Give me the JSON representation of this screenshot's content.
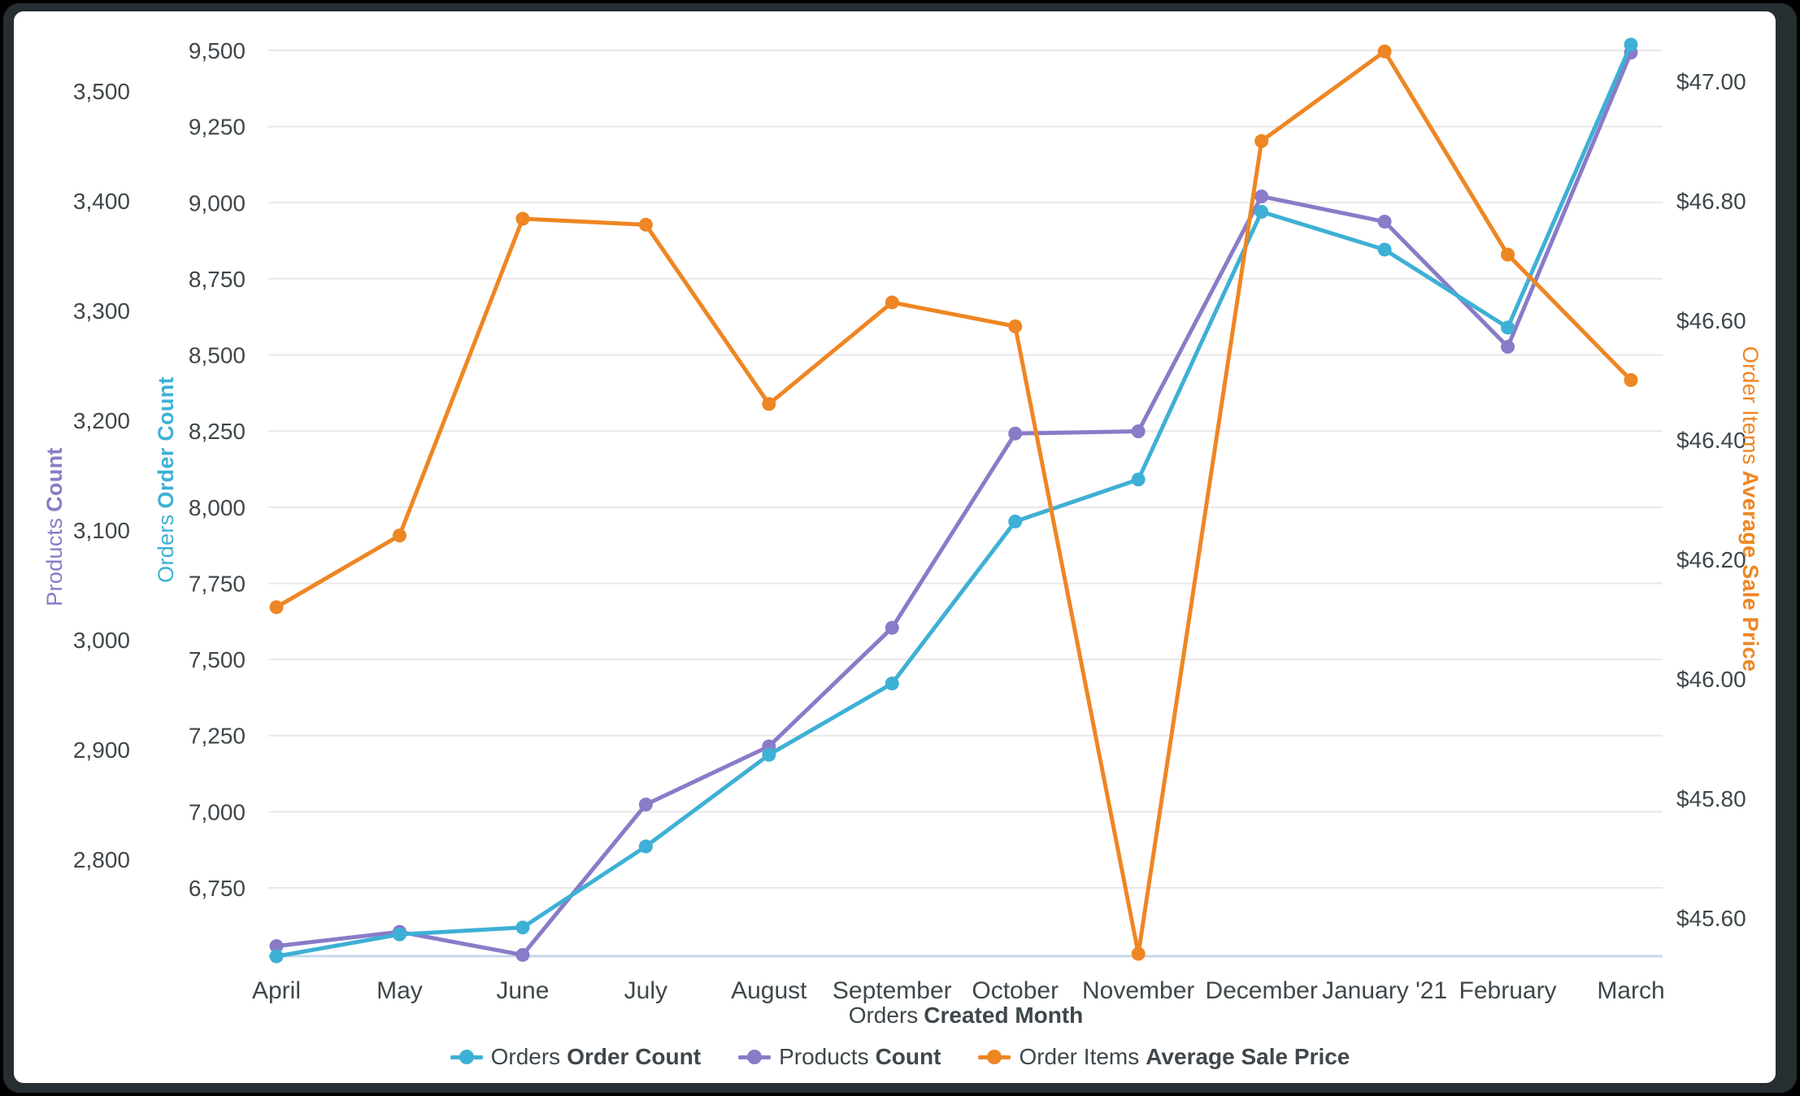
{
  "chart_data": {
    "type": "line",
    "title": "",
    "categories": [
      "April",
      "May",
      "June",
      "July",
      "August",
      "September",
      "October",
      "November",
      "December",
      "January '21",
      "February",
      "March"
    ],
    "x_axis": {
      "title_regular": "Orders",
      "title_bold": "Created Month"
    },
    "axes": {
      "products": {
        "title_regular": "Products",
        "title_bold": "Count",
        "color": "#8a7bc8",
        "side": "left-outer",
        "tick_labels": [
          "2,800",
          "2,900",
          "3,000",
          "3,100",
          "3,200",
          "3,300",
          "3,400",
          "3,500"
        ],
        "tick_values": [
          2800,
          2900,
          3000,
          3100,
          3200,
          3300,
          3400,
          3500
        ]
      },
      "orders": {
        "title_regular": "Orders",
        "title_bold": "Order Count",
        "color": "#3eb0d5",
        "side": "left-inner",
        "tick_labels": [
          "6,750",
          "7,000",
          "7,250",
          "7,500",
          "7,750",
          "8,000",
          "8,250",
          "8,500",
          "8,750",
          "9,000",
          "9,250",
          "9,500"
        ],
        "tick_values": [
          6750,
          7000,
          7250,
          7500,
          7750,
          8000,
          8250,
          8500,
          8750,
          9000,
          9250,
          9500
        ]
      },
      "price": {
        "title_regular": "Order Items",
        "title_bold": "Average Sale Price",
        "color": "#ee8623",
        "side": "right",
        "tick_labels": [
          "$45.60",
          "$45.80",
          "$46.00",
          "$46.20",
          "$46.40",
          "$46.60",
          "$46.80",
          "$47.00"
        ],
        "tick_values": [
          45.6,
          45.8,
          46.0,
          46.2,
          46.4,
          46.6,
          46.8,
          47.0
        ]
      }
    },
    "series": [
      {
        "id": "products",
        "axis": "products",
        "color": "#8a7bc8",
        "name_regular": "Products",
        "name_bold": "Count",
        "values": [
          2721,
          2734,
          2713,
          2850,
          2903,
          3011,
          3188,
          3190,
          3404,
          3381,
          3267,
          3535
        ]
      },
      {
        "id": "orders",
        "axis": "orders",
        "color": "#3eb0d5",
        "name_regular": "Orders",
        "name_bold": "Order Count",
        "values": [
          6525,
          6597,
          6620,
          6886,
          7187,
          7421,
          7953,
          8091,
          8970,
          8846,
          8590,
          9519
        ]
      },
      {
        "id": "price",
        "axis": "price",
        "color": "#ee8623",
        "name_regular": "Order Items",
        "name_bold": "Average Sale Price",
        "values": [
          46.12,
          46.24,
          46.77,
          46.76,
          46.46,
          46.63,
          46.59,
          45.54,
          46.9,
          47.05,
          46.71,
          46.5
        ]
      }
    ],
    "legend": [
      {
        "regular": "Orders",
        "bold": "Order Count",
        "color": "#3eb0d5"
      },
      {
        "regular": "Products",
        "bold": "Count",
        "color": "#8a7bc8"
      },
      {
        "regular": "Order Items",
        "bold": "Average Sale Price",
        "color": "#ee8623"
      }
    ],
    "style": {
      "text_color": "#3f474b",
      "gridline_color": "#e8e8e8",
      "baseline_color": "#c9d5ea",
      "grid": true,
      "legend_position": "bottom"
    }
  }
}
